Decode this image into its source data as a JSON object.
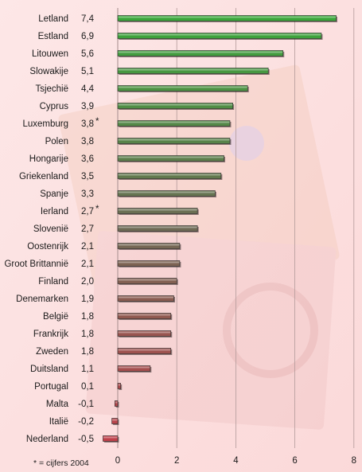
{
  "chart_data": {
    "type": "bar",
    "orientation": "horizontal",
    "categories": [
      "Letland",
      "Estland",
      "Litouwen",
      "Slowakije",
      "Tsjechië",
      "Cyprus",
      "Luxemburg",
      "Polen",
      "Hongarije",
      "Griekenland",
      "Spanje",
      "Ierland",
      "Slovenië",
      "Oostenrijk",
      "Groot Brittannië",
      "Finland",
      "Denemarken",
      "België",
      "Frankrijk",
      "Zweden",
      "Duitsland",
      "Portugal",
      "Malta",
      "Italië",
      "Nederland"
    ],
    "value_labels": [
      "7,4",
      "6,9",
      "5,6",
      "5,1",
      "4,4",
      "3,9",
      "3,8",
      "3,8",
      "3,6",
      "3,5",
      "3,3",
      "2,7",
      "2,7",
      "2,1",
      "2,1",
      "2,0",
      "1,9",
      "1,8",
      "1,8",
      "1,8",
      "1,1",
      "0,1",
      "-0,1",
      "-0,2",
      "-0,5"
    ],
    "values": [
      7.4,
      6.9,
      5.6,
      5.1,
      4.4,
      3.9,
      3.8,
      3.8,
      3.6,
      3.5,
      3.3,
      2.7,
      2.7,
      2.1,
      2.1,
      2.0,
      1.9,
      1.8,
      1.8,
      1.8,
      1.1,
      0.1,
      -0.1,
      -0.2,
      -0.5
    ],
    "asterisk": [
      false,
      false,
      false,
      false,
      false,
      false,
      true,
      false,
      false,
      false,
      false,
      true,
      false,
      false,
      false,
      false,
      false,
      false,
      false,
      false,
      false,
      false,
      false,
      false,
      false
    ],
    "asterisk_mark": "*",
    "xlim": [
      -0.5,
      8
    ],
    "xticks": [
      "0",
      "2",
      "4",
      "6",
      "8"
    ],
    "xtick_values": [
      0,
      2,
      4,
      6,
      8
    ],
    "grid": true,
    "footnote": "* = cijfers 2004",
    "colors": {
      "background": "#fde3e3",
      "grid": "#b39a9a",
      "bar_top": "#3aa63a",
      "bar_mid": "#6f6a55",
      "bar_low": "#c0404a"
    }
  }
}
